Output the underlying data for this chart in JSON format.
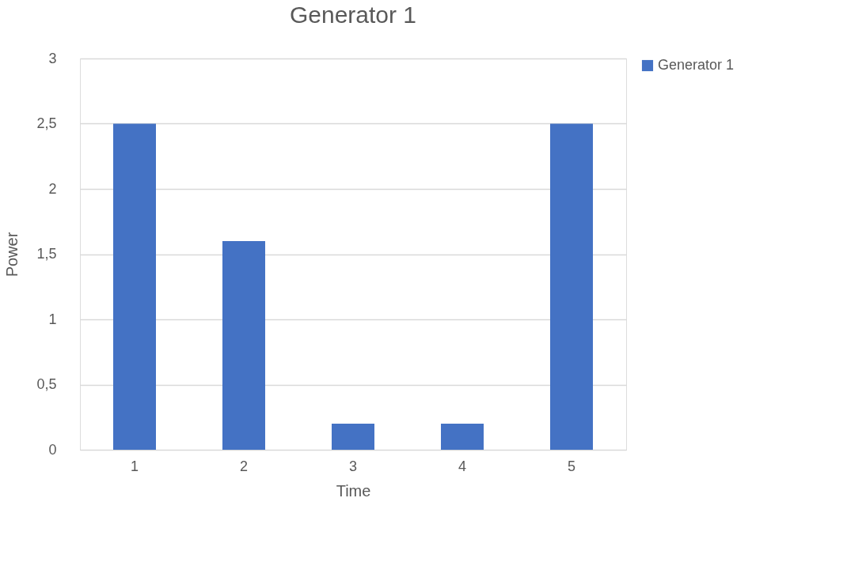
{
  "chart_data": {
    "type": "bar",
    "title": "Generator 1",
    "xlabel": "Time",
    "ylabel": "Power",
    "categories": [
      "1",
      "2",
      "3",
      "4",
      "5"
    ],
    "series": [
      {
        "name": "Generator 1",
        "color": "#4472c4",
        "values": [
          2.5,
          1.6,
          0.2,
          0.2,
          2.5
        ]
      }
    ],
    "ylim": [
      0,
      3
    ],
    "yticks": [
      0,
      {
        "value": 0.5,
        "label": "0,5"
      },
      1,
      {
        "value": 1.5,
        "label": "1,5"
      },
      2,
      {
        "value": 2.5,
        "label": "2,5"
      },
      3
    ],
    "grid": "y",
    "legend": "right"
  }
}
